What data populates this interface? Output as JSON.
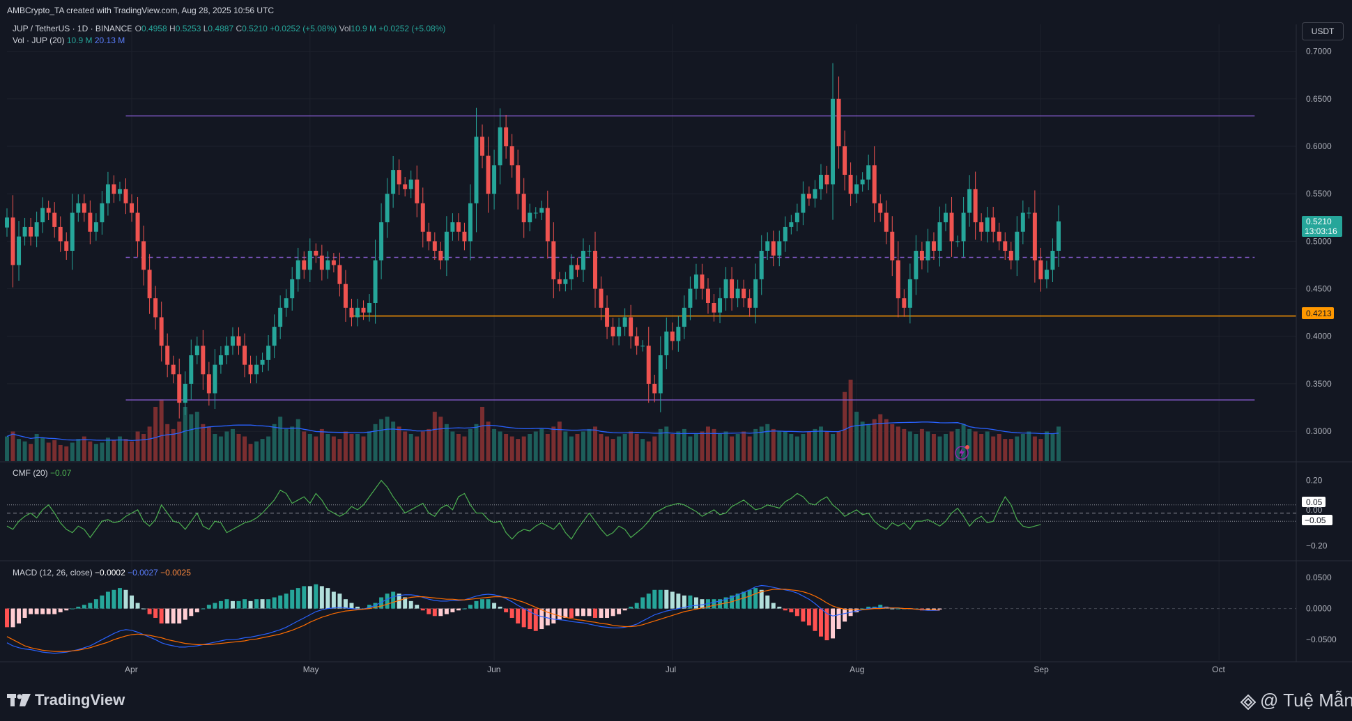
{
  "header": {
    "creator": "AMBCrypto_TA created with TradingView.com, Aug 28, 2025 10:56 UTC",
    "symbol": "JUP / TetherUS · 1D · BINANCE",
    "open_label": "O",
    "open": "0.4958",
    "high_label": "H",
    "high": "0.5253",
    "low_label": "L",
    "low": "0.4887",
    "close_label": "C",
    "close": "0.5210",
    "change": "+0.0252 (+5.08%)",
    "vol_label": "Vol",
    "vol": "10.9 M",
    "vol_change": "+0.0252 (+5.08%)",
    "vol_indicator": "Vol · JUP (20)",
    "vol_value": "10.9 M",
    "vol_ma": "20.13 M",
    "currency_button": "USDT"
  },
  "price_tags": {
    "last_price": "0.5210",
    "countdown": "13:03:16",
    "support": "0.4213"
  },
  "cmf": {
    "legend": "CMF (20)",
    "value": "−0.07",
    "tag_upper": "0.05",
    "tag_mid": "0.00",
    "tag_lower": "−0.05"
  },
  "macd": {
    "legend": "MACD (12, 26, close)",
    "hist": "−0.0002",
    "macd": "−0.0027",
    "signal": "−0.0025"
  },
  "footer": {
    "brand": "TradingView",
    "watermark": "@ Tuệ Mẫn"
  },
  "colors": {
    "background": "#131722",
    "up": "#26a69a",
    "down": "#ef5350",
    "resistance_line": "#7e57c2",
    "support_line": "#ff9800",
    "cmf_line": "#4caf50",
    "macd_line": "#2962ff",
    "signal_line": "#ff6d00",
    "volume_ma": "#2962ff"
  },
  "chart_data": [
    {
      "type": "candlestick",
      "title": "JUP / TetherUS · 1D · BINANCE",
      "y_ticks": [
        "0.7000",
        "0.6500",
        "0.6000",
        "0.5500",
        "0.5000",
        "0.4500",
        "0.4000",
        "0.3500",
        "0.3000"
      ],
      "ylim": [
        0.27,
        0.71
      ],
      "x_ticks": [
        "Apr",
        "May",
        "Jun",
        "Jul",
        "Aug",
        "Sep",
        "Oct"
      ],
      "x_start": "2025-03-11",
      "x_end": "2025-10-14",
      "horizontal_lines": [
        {
          "value": 0.632,
          "style": "solid",
          "color": "#7e57c2",
          "from": "2025-03-31",
          "to": "2025-10-07"
        },
        {
          "value": 0.483,
          "style": "dashed",
          "color": "#7e57c2",
          "from": "2025-03-31",
          "to": "2025-10-07"
        },
        {
          "value": 0.4213,
          "style": "solid",
          "color": "#ff9800",
          "from": "2025-05-08",
          "to": "2025-10-14"
        },
        {
          "value": 0.333,
          "style": "solid",
          "color": "#7e57c2",
          "from": "2025-03-31",
          "to": "2025-10-07"
        }
      ],
      "series": [
        {
          "name": "Close",
          "values": [
            0.525,
            0.475,
            0.505,
            0.515,
            0.505,
            0.52,
            0.535,
            0.53,
            0.515,
            0.5,
            0.49,
            0.53,
            0.54,
            0.53,
            0.51,
            0.52,
            0.54,
            0.56,
            0.55,
            0.555,
            0.54,
            0.53,
            0.5,
            0.47,
            0.44,
            0.42,
            0.39,
            0.37,
            0.36,
            0.33,
            0.35,
            0.38,
            0.39,
            0.36,
            0.34,
            0.37,
            0.38,
            0.39,
            0.4,
            0.39,
            0.37,
            0.36,
            0.37,
            0.375,
            0.39,
            0.41,
            0.43,
            0.44,
            0.46,
            0.48,
            0.47,
            0.49,
            0.485,
            0.47,
            0.48,
            0.475,
            0.455,
            0.43,
            0.42,
            0.43,
            0.425,
            0.435,
            0.48,
            0.52,
            0.55,
            0.575,
            0.56,
            0.555,
            0.565,
            0.54,
            0.51,
            0.5,
            0.49,
            0.48,
            0.51,
            0.52,
            0.51,
            0.5,
            0.54,
            0.61,
            0.59,
            0.55,
            0.58,
            0.62,
            0.6,
            0.58,
            0.55,
            0.52,
            0.53,
            0.53,
            0.535,
            0.5,
            0.46,
            0.455,
            0.46,
            0.475,
            0.47,
            0.49,
            0.49,
            0.45,
            0.43,
            0.41,
            0.4,
            0.41,
            0.42,
            0.4,
            0.39,
            0.39,
            0.35,
            0.34,
            0.38,
            0.405,
            0.395,
            0.41,
            0.43,
            0.45,
            0.465,
            0.45,
            0.435,
            0.425,
            0.44,
            0.46,
            0.44,
            0.45,
            0.44,
            0.43,
            0.46,
            0.49,
            0.5,
            0.485,
            0.5,
            0.515,
            0.52,
            0.53,
            0.55,
            0.545,
            0.555,
            0.57,
            0.56,
            0.65,
            0.6,
            0.57,
            0.55,
            0.56,
            0.565,
            0.58,
            0.54,
            0.53,
            0.51,
            0.48,
            0.44,
            0.43,
            0.46,
            0.49,
            0.48,
            0.5,
            0.49,
            0.52,
            0.53,
            0.5,
            0.5,
            0.53,
            0.555,
            0.52,
            0.51,
            0.525,
            0.51,
            0.5,
            0.49,
            0.48,
            0.51,
            0.53,
            0.53,
            0.48,
            0.46,
            0.47,
            0.49,
            0.521
          ]
        }
      ]
    },
    {
      "type": "bar",
      "title": "Vol · JUP (20)",
      "series": [
        {
          "name": "Vol · JUP (20)",
          "values": [
            20,
            24,
            18,
            16,
            14,
            22,
            19,
            15,
            17,
            13,
            12,
            15,
            18,
            20,
            16,
            14,
            15,
            19,
            17,
            20,
            18,
            16,
            24,
            22,
            28,
            44,
            50,
            30,
            26,
            32,
            44,
            38,
            40,
            30,
            28,
            22,
            20,
            24,
            26,
            22,
            20,
            14,
            16,
            18,
            20,
            30,
            36,
            26,
            28,
            34,
            24,
            22,
            20,
            26,
            22,
            20,
            18,
            24,
            22,
            22,
            20,
            24,
            30,
            34,
            36,
            32,
            28,
            24,
            22,
            20,
            24,
            26,
            40,
            36,
            30,
            24,
            22,
            20,
            26,
            30,
            44,
            32,
            26,
            24,
            22,
            20,
            18,
            20,
            22,
            24,
            26,
            22,
            28,
            32,
            24,
            20,
            22,
            24,
            26,
            28,
            22,
            20,
            18,
            20,
            22,
            24,
            22,
            18,
            16,
            20,
            26,
            28,
            22,
            24,
            26,
            20,
            22,
            24,
            28,
            26,
            22,
            24,
            20,
            22,
            24,
            20,
            26,
            28,
            30,
            26,
            24,
            24,
            22,
            20,
            22,
            24,
            26,
            28,
            24,
            22,
            24,
            56,
            66,
            40,
            32,
            30,
            34,
            38,
            34,
            30,
            28,
            26,
            24,
            22,
            26,
            24,
            22,
            20,
            22,
            24,
            26,
            30,
            26,
            24,
            22,
            24,
            20,
            22,
            18,
            18,
            20,
            22,
            24,
            20,
            18,
            24,
            22,
            28
          ]
        }
      ]
    },
    {
      "type": "line",
      "title": "CMF (20)",
      "y_ticks": [
        "0.20",
        "−0.20"
      ],
      "ylim": [
        -0.25,
        0.25
      ],
      "reference_lines": [
        0.05,
        0.0,
        -0.05
      ],
      "series": [
        {
          "name": "CMF (20)",
          "values": [
            -0.08,
            -0.1,
            -0.05,
            -0.02,
            0.0,
            -0.03,
            0.02,
            0.05,
            0.0,
            -0.06,
            -0.1,
            -0.12,
            -0.08,
            -0.1,
            -0.15,
            -0.1,
            -0.05,
            -0.04,
            -0.06,
            -0.05,
            -0.02,
            0.0,
            0.02,
            -0.05,
            -0.08,
            -0.04,
            0.05,
            0.0,
            -0.05,
            -0.06,
            -0.1,
            -0.05,
            0.0,
            -0.08,
            -0.1,
            -0.05,
            -0.06,
            -0.12,
            -0.1,
            -0.08,
            -0.06,
            -0.05,
            -0.03,
            0.0,
            0.04,
            0.08,
            0.14,
            0.12,
            0.06,
            0.08,
            0.1,
            0.06,
            0.12,
            0.08,
            0.02,
            0.0,
            -0.02,
            0.0,
            0.04,
            0.02,
            0.05,
            0.1,
            0.15,
            0.2,
            0.16,
            0.1,
            0.05,
            0.0,
            0.02,
            0.04,
            0.06,
            0.0,
            -0.02,
            0.03,
            0.05,
            0.02,
            0.1,
            0.12,
            0.05,
            0.0,
            0.0,
            -0.04,
            -0.06,
            -0.05,
            -0.12,
            -0.16,
            -0.12,
            -0.1,
            -0.11,
            -0.08,
            -0.06,
            -0.08,
            -0.1,
            -0.06,
            -0.12,
            -0.16,
            -0.1,
            -0.05,
            0.0,
            -0.05,
            -0.1,
            -0.14,
            -0.12,
            -0.08,
            -0.1,
            -0.15,
            -0.12,
            -0.09,
            -0.05,
            0.0,
            0.02,
            0.04,
            0.05,
            0.06,
            0.05,
            0.03,
            0.01,
            -0.02,
            0.0,
            0.02,
            -0.01,
            0.0,
            0.04,
            0.06,
            0.08,
            0.05,
            0.02,
            0.03,
            0.05,
            0.04,
            0.03,
            0.07,
            0.09,
            0.12,
            0.1,
            0.06,
            0.05,
            0.08,
            0.1,
            0.05,
            0.02,
            -0.02,
            0.0,
            0.02,
            -0.01,
            0.0,
            -0.05,
            -0.08,
            -0.1,
            -0.06,
            -0.08,
            -0.06,
            -0.1,
            -0.05,
            -0.05,
            -0.04,
            -0.06,
            -0.08,
            -0.05,
            0.0,
            0.03,
            -0.02,
            -0.08,
            -0.04,
            -0.02,
            -0.06,
            -0.05,
            0.03,
            0.1,
            0.05,
            -0.04,
            -0.08,
            -0.09,
            -0.08,
            -0.07
          ]
        }
      ]
    },
    {
      "type": "bar",
      "title": "MACD (12, 26, close)",
      "y_ticks": [
        "0.0500",
        "0.0000",
        "−0.0500"
      ],
      "ylim": [
        -0.08,
        0.06
      ],
      "series": [
        {
          "name": "MACD",
          "values": [
            -0.055,
            -0.06,
            -0.063,
            -0.065,
            -0.066,
            -0.068,
            -0.07,
            -0.071,
            -0.072,
            -0.071,
            -0.07,
            -0.068,
            -0.066,
            -0.063,
            -0.06,
            -0.055,
            -0.05,
            -0.045,
            -0.04,
            -0.036,
            -0.034,
            -0.035,
            -0.038,
            -0.042,
            -0.046,
            -0.05,
            -0.055,
            -0.058,
            -0.06,
            -0.062,
            -0.062,
            -0.061,
            -0.06,
            -0.058,
            -0.056,
            -0.054,
            -0.052,
            -0.05,
            -0.05,
            -0.049,
            -0.047,
            -0.046,
            -0.044,
            -0.042,
            -0.04,
            -0.037,
            -0.034,
            -0.03,
            -0.025,
            -0.02,
            -0.015,
            -0.01,
            -0.005,
            -0.002,
            0.0,
            0.001,
            0.002,
            0.001,
            0.0,
            -0.001,
            -0.001,
            0.002,
            0.005,
            0.01,
            0.015,
            0.019,
            0.021,
            0.022,
            0.022,
            0.021,
            0.018,
            0.015,
            0.013,
            0.012,
            0.012,
            0.013,
            0.013,
            0.014,
            0.017,
            0.02,
            0.022,
            0.023,
            0.022,
            0.02,
            0.016,
            0.011,
            0.005,
            0.0,
            -0.005,
            -0.01,
            -0.013,
            -0.015,
            -0.017,
            -0.018,
            -0.019,
            -0.021,
            -0.022,
            -0.023,
            -0.025,
            -0.027,
            -0.029,
            -0.03,
            -0.031,
            -0.031,
            -0.03,
            -0.028,
            -0.025,
            -0.02,
            -0.015,
            -0.01,
            -0.007,
            -0.004,
            -0.002,
            0.0,
            0.002,
            0.004,
            0.005,
            0.006,
            0.008,
            0.01,
            0.012,
            0.015,
            0.018,
            0.022,
            0.026,
            0.03,
            0.035,
            0.037,
            0.036,
            0.034,
            0.032,
            0.03,
            0.028,
            0.025,
            0.02,
            0.015,
            0.008,
            0.0,
            -0.008,
            -0.012,
            -0.01,
            -0.008,
            -0.006,
            -0.004,
            -0.002,
            0.0,
            0.001,
            0.002,
            0.002,
            0.001,
            0.001,
            0.0,
            0.0,
            -0.001,
            -0.002,
            -0.003,
            -0.003,
            -0.003
          ]
        },
        {
          "name": "Signal",
          "values": [
            -0.045,
            -0.05,
            -0.055,
            -0.06,
            -0.063,
            -0.065,
            -0.067,
            -0.068,
            -0.069,
            -0.069,
            -0.069,
            -0.068,
            -0.067,
            -0.065,
            -0.063,
            -0.06,
            -0.057,
            -0.054,
            -0.05,
            -0.047,
            -0.044,
            -0.042,
            -0.041,
            -0.042,
            -0.043,
            -0.045,
            -0.047,
            -0.05,
            -0.052,
            -0.054,
            -0.056,
            -0.057,
            -0.058,
            -0.058,
            -0.058,
            -0.057,
            -0.056,
            -0.055,
            -0.054,
            -0.053,
            -0.052,
            -0.05,
            -0.049,
            -0.047,
            -0.045,
            -0.043,
            -0.041,
            -0.038,
            -0.035,
            -0.031,
            -0.027,
            -0.022,
            -0.018,
            -0.014,
            -0.011,
            -0.008,
            -0.006,
            -0.004,
            -0.003,
            -0.002,
            -0.001,
            0.0,
            0.002,
            0.004,
            0.007,
            0.01,
            0.013,
            0.016,
            0.018,
            0.019,
            0.019,
            0.018,
            0.017,
            0.016,
            0.015,
            0.015,
            0.014,
            0.014,
            0.015,
            0.016,
            0.017,
            0.018,
            0.019,
            0.019,
            0.018,
            0.016,
            0.013,
            0.01,
            0.006,
            0.002,
            -0.002,
            -0.006,
            -0.009,
            -0.012,
            -0.014,
            -0.016,
            -0.018,
            -0.019,
            -0.021,
            -0.022,
            -0.024,
            -0.025,
            -0.027,
            -0.028,
            -0.029,
            -0.029,
            -0.028,
            -0.026,
            -0.023,
            -0.02,
            -0.017,
            -0.014,
            -0.011,
            -0.008,
            -0.005,
            -0.003,
            -0.001,
            0.001,
            0.003,
            0.005,
            0.007,
            0.009,
            0.011,
            0.014,
            0.017,
            0.02,
            0.024,
            0.027,
            0.029,
            0.031,
            0.031,
            0.031,
            0.03,
            0.029,
            0.027,
            0.024,
            0.02,
            0.015,
            0.009,
            0.004,
            0.001,
            -0.001,
            -0.002,
            -0.002,
            -0.002,
            -0.001,
            0.0,
            0.0,
            0.001,
            0.001,
            0.001,
            0.0,
            0.0,
            -0.001,
            -0.001,
            -0.002,
            -0.002,
            -0.0025
          ]
        }
      ]
    }
  ]
}
